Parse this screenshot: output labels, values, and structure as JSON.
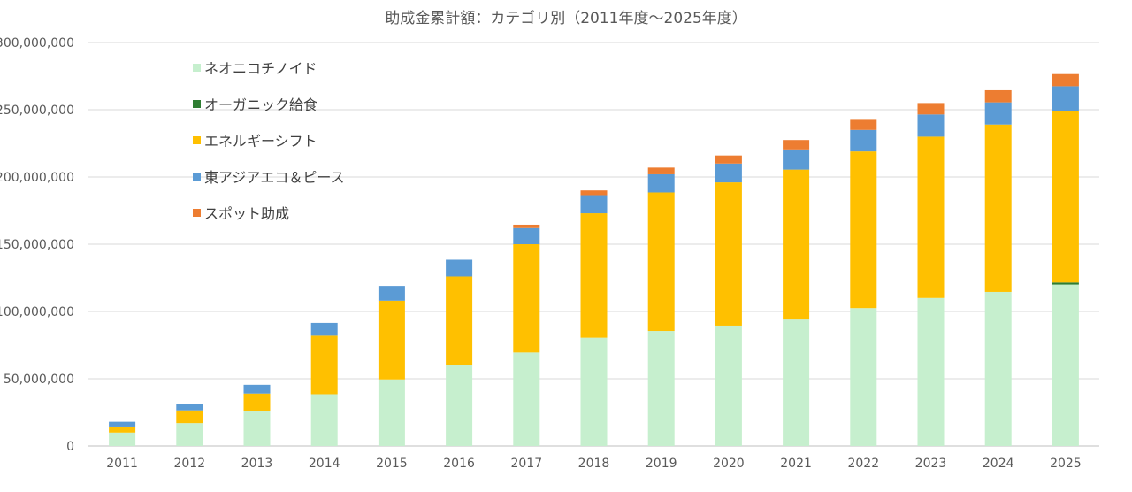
{
  "chart_data": {
    "type": "bar",
    "stacked": true,
    "title": "助成金累計額：カテゴリ別（2011年度～2025年度）",
    "xlabel": "",
    "ylabel": "",
    "categories": [
      "2011",
      "2012",
      "2013",
      "2014",
      "2015",
      "2016",
      "2017",
      "2018",
      "2019",
      "2020",
      "2021",
      "2022",
      "2023",
      "2024",
      "2025"
    ],
    "ylim": [
      0,
      300000000
    ],
    "yticks": [
      {
        "value": 0,
        "label": "0"
      },
      {
        "value": 50000000,
        "label": "50,000,000"
      },
      {
        "value": 100000000,
        "label": "100,000,000"
      },
      {
        "value": 150000000,
        "label": "150,000,000"
      },
      {
        "value": 200000000,
        "label": "200,000,000"
      },
      {
        "value": 250000000,
        "label": "250,000,000"
      },
      {
        "value": 300000000,
        "label": "300,000,000"
      }
    ],
    "grid": true,
    "legend_position": "top-left",
    "series": [
      {
        "name": "ネオニコチノイド",
        "color": "#c6efce",
        "values": [
          10000000,
          17000000,
          26000000,
          38500000,
          49500000,
          60000000,
          69500000,
          80500000,
          85500000,
          89500000,
          94000000,
          102500000,
          110000000,
          114500000,
          120000000
        ]
      },
      {
        "name": "オーガニック給食",
        "color": "#2e7d32",
        "values": [
          0,
          0,
          0,
          0,
          0,
          0,
          0,
          0,
          0,
          0,
          0,
          0,
          0,
          0,
          1500000
        ]
      },
      {
        "name": "エネルギーシフト",
        "color": "#ffc000",
        "values": [
          4500000,
          9500000,
          13000000,
          43500000,
          58500000,
          66000000,
          80500000,
          92500000,
          103000000,
          106500000,
          111500000,
          116500000,
          120000000,
          124500000,
          127500000
        ]
      },
      {
        "name": "東アジアエコ＆ピース",
        "color": "#5b9bd5",
        "values": [
          3500000,
          4500000,
          6500000,
          9500000,
          11000000,
          12500000,
          12000000,
          13500000,
          13500000,
          14000000,
          15000000,
          16000000,
          16500000,
          16500000,
          18500000
        ]
      },
      {
        "name": "スポット助成",
        "color": "#ed7d31",
        "values": [
          0,
          0,
          0,
          0,
          0,
          0,
          2500000,
          3500000,
          5000000,
          6000000,
          7000000,
          7500000,
          8500000,
          9000000,
          9000000
        ]
      }
    ]
  }
}
